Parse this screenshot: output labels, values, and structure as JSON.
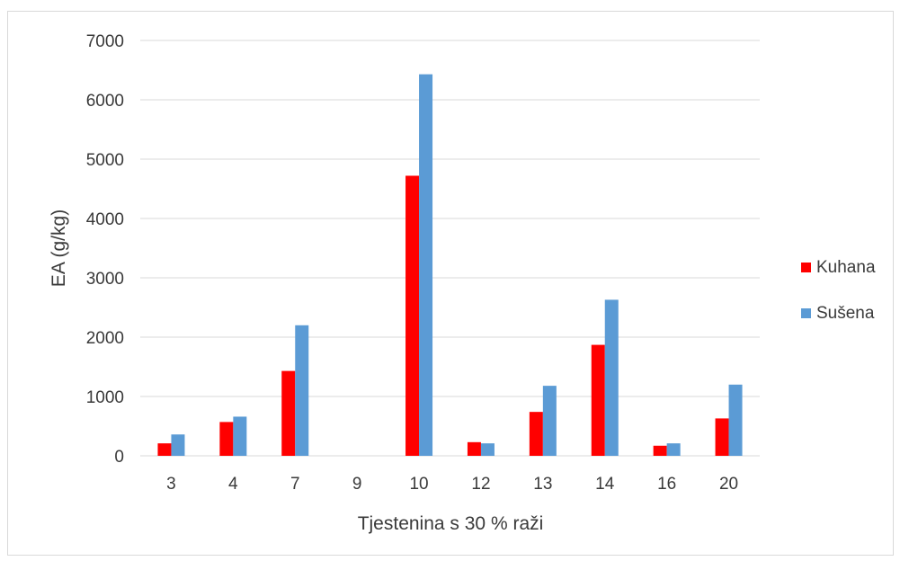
{
  "chart_data": {
    "type": "bar",
    "title": "",
    "xlabel": "Tjestenina s 30 % raži",
    "ylabel": "EA (g/kg)",
    "ylim": [
      0,
      7000
    ],
    "yticks": [
      0,
      1000,
      2000,
      3000,
      4000,
      5000,
      6000,
      7000
    ],
    "grid": true,
    "legend": "right",
    "categories": [
      "3",
      "4",
      "7",
      "9",
      "10",
      "12",
      "13",
      "14",
      "16",
      "20"
    ],
    "series": [
      {
        "name": "Kuhana",
        "color": "#ff0000",
        "values": [
          210,
          570,
          1430,
          0,
          4720,
          230,
          740,
          1870,
          170,
          630
        ]
      },
      {
        "name": "Sušena",
        "color": "#5b9bd5",
        "values": [
          360,
          660,
          2200,
          0,
          6430,
          210,
          1180,
          2630,
          210,
          1200
        ]
      }
    ]
  }
}
